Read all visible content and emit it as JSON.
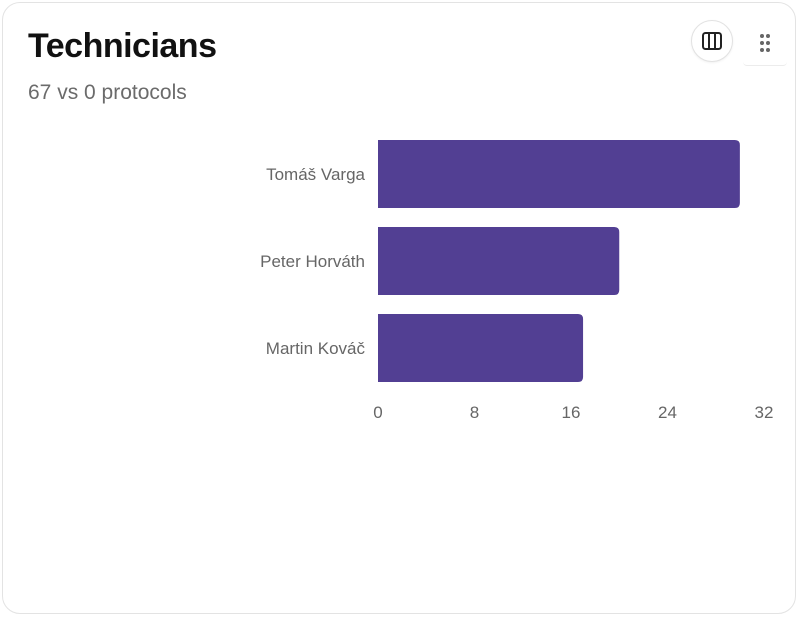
{
  "card": {
    "title": "Technicians",
    "subtitle": "67 vs 0 protocols"
  },
  "toolbar": {
    "columns_icon": "columns-icon",
    "drag_icon": "drag-handle-icon"
  },
  "chart_data": {
    "type": "bar",
    "orientation": "horizontal",
    "categories": [
      "Tomáš Varga",
      "Peter Horváth",
      "Martin Kováč"
    ],
    "values": [
      30,
      20,
      17
    ],
    "xlim": [
      0,
      32
    ],
    "xticks": [
      0,
      8,
      16,
      24,
      32
    ],
    "grid": false,
    "legend": "none",
    "bar_color": "#523f93"
  }
}
